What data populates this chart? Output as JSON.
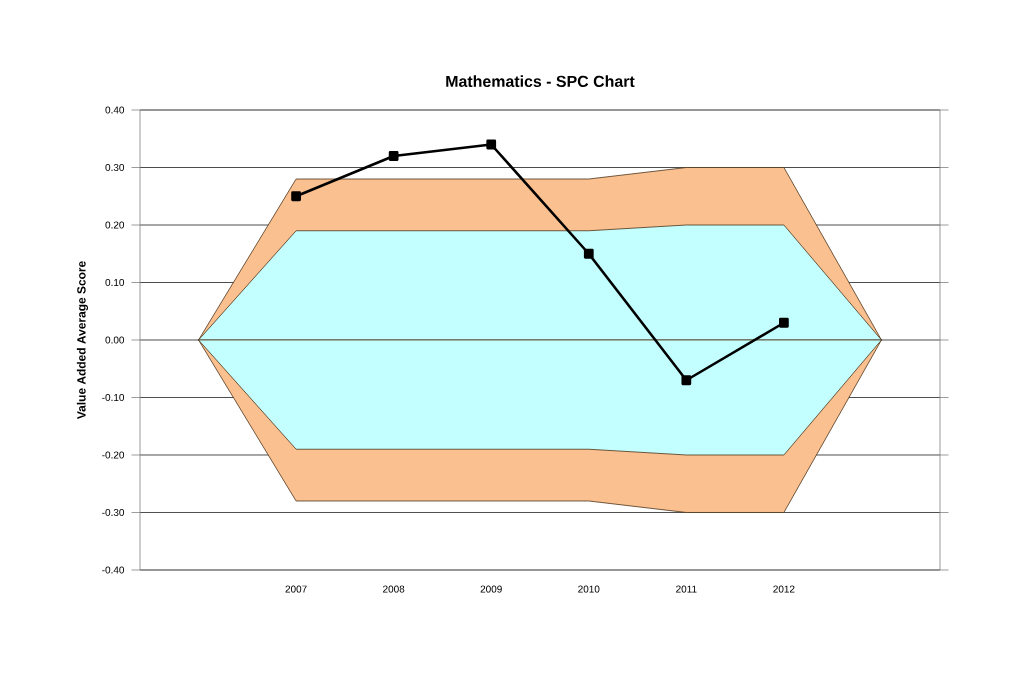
{
  "chart_data": {
    "type": "line",
    "title": "Mathematics - SPC Chart",
    "ylabel": "Value Added Average Score",
    "categories": [
      null,
      "2007",
      "2008",
      "2009",
      "2010",
      "2011",
      "2012",
      null
    ],
    "series": [
      {
        "type": "area",
        "color": "#fac090",
        "values": [
          0,
          0.28,
          0.28,
          0.28,
          0.28,
          0.3,
          0.3,
          0
        ]
      },
      {
        "type": "area",
        "color": "#fac090",
        "values": [
          0,
          -0.28,
          -0.28,
          -0.28,
          -0.28,
          -0.3,
          -0.3,
          0
        ]
      },
      {
        "type": "area",
        "color": "#c4ffff",
        "values": [
          0,
          0.19,
          0.19,
          0.19,
          0.19,
          0.2,
          0.2,
          0
        ]
      },
      {
        "type": "area",
        "color": "#c4ffff",
        "values": [
          0,
          -0.19,
          -0.19,
          -0.19,
          -0.19,
          -0.2,
          -0.2,
          0
        ]
      },
      {
        "color": "#000000",
        "marker": "square",
        "values": [
          null,
          0.25,
          0.32,
          0.34,
          0.15,
          -0.07,
          0.03,
          null
        ]
      }
    ],
    "ylim": [
      -0.4,
      0.4
    ],
    "yticks": [
      {
        "value": -0.4,
        "label": "-0.40"
      },
      {
        "value": -0.3,
        "label": "-0.30"
      },
      {
        "value": -0.2,
        "label": "-0.20"
      },
      {
        "value": -0.1,
        "label": "-0.10"
      },
      {
        "value": 0,
        "label": "0.00"
      },
      {
        "value": 0.1,
        "label": "0.10"
      },
      {
        "value": 0.2,
        "label": "0.20"
      },
      {
        "value": 0.3,
        "label": "0.30"
      },
      {
        "value": 0.4,
        "label": "0.40"
      }
    ],
    "grid": "y"
  }
}
